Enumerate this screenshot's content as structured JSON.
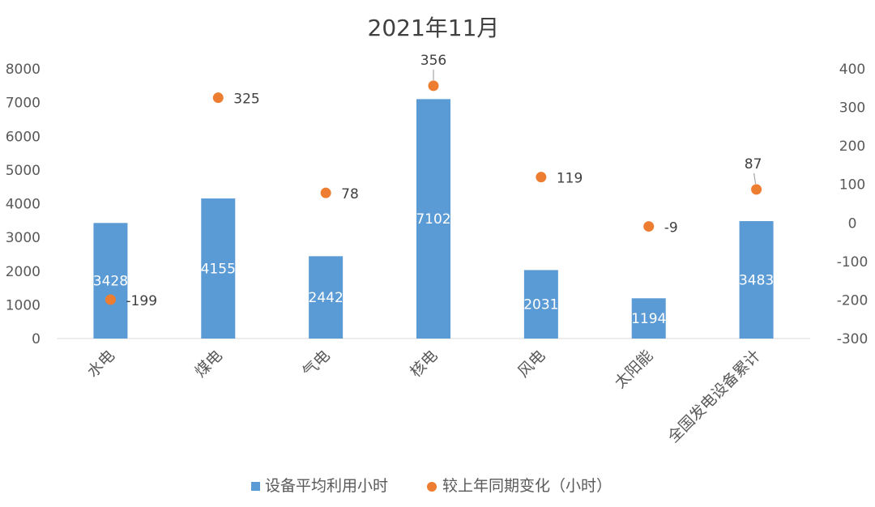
{
  "chart_data": {
    "type": "bar",
    "title": "2021年11月",
    "categories": [
      "水电",
      "煤电",
      "气电",
      "核电",
      "风电",
      "太阳能",
      "全国发电设备累计"
    ],
    "series": [
      {
        "name": "设备平均利用小时",
        "type": "bar",
        "axis": "left",
        "values": [
          3428,
          4155,
          2442,
          7102,
          2031,
          1194,
          3483
        ]
      },
      {
        "name": "较上年同期变化（小时）",
        "type": "scatter",
        "axis": "right",
        "values": [
          -199,
          325,
          78,
          356,
          119,
          -9,
          87
        ]
      }
    ],
    "ylim": [
      0,
      8000
    ],
    "yticks": [
      "0",
      "1000",
      "2000",
      "3000",
      "4000",
      "5000",
      "6000",
      "7000",
      "8000"
    ],
    "y2lim": [
      -300,
      400
    ],
    "y2ticks": [
      "-300",
      "-200",
      "-100",
      "0",
      "100",
      "200",
      "300",
      "400"
    ],
    "legend_position": "bottom",
    "colors": {
      "bar": "#5B9BD5",
      "point": "#ED7D31"
    }
  }
}
